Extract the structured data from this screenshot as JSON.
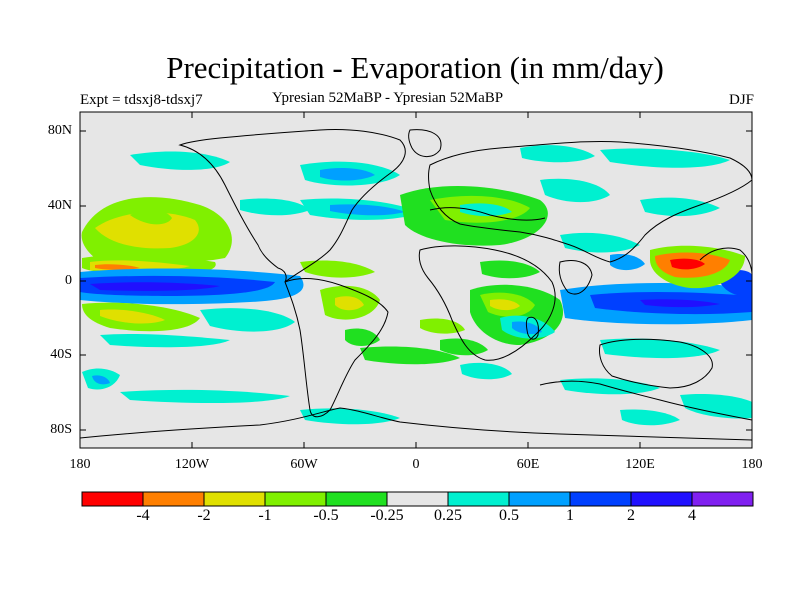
{
  "title": "Precipitation - Evaporation (in mm/day)",
  "left_label": "Expt = tdsxj8-tdsxj7",
  "center_label": "Ypresian  52MaBP - Ypresian  52MaBP",
  "right_label": "DJF",
  "y_axis_labels": [
    "80N",
    "40N",
    "0",
    "40S",
    "80S"
  ],
  "x_axis_labels": [
    "180",
    "120W",
    "60W",
    "0",
    "60E",
    "120E",
    "180"
  ],
  "colorbar": {
    "colors": [
      "#ff0000",
      "#ff7f00",
      "#e0e000",
      "#80f000",
      "#20e020",
      "#e6e6e6",
      "#00f0d0",
      "#00a0ff",
      "#0040ff",
      "#2010ff",
      "#8020f0"
    ],
    "labels": [
      "-4",
      "-2",
      "-1",
      "-0.5",
      "-0.25",
      "0.25",
      "0.5",
      "1",
      "2",
      "4"
    ]
  },
  "colors": {
    "background_field": "#e6e6e6",
    "coast": "#000000"
  }
}
